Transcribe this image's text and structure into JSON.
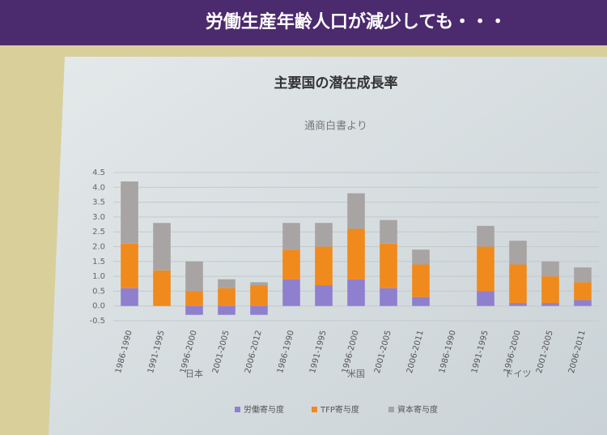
{
  "slide_title": "労働生産年齢人口が減少しても・・・",
  "chart_data": {
    "type": "stacked-bar",
    "title": "主要国の潜在成長率",
    "subtitle": "通商白書より",
    "categories": [
      "1986-1990",
      "1991-1995",
      "1996-2000",
      "2001-2005",
      "2006-2012",
      "1986-1990",
      "1991-1995",
      "1996-2000",
      "2001-2005",
      "2006-2011",
      "1986-1990",
      "1991-1995",
      "1996-2000",
      "2001-2005",
      "2006-2011"
    ],
    "groups": [
      "日本",
      "米国",
      "ドイツ"
    ],
    "series": [
      {
        "name": "労働寄与度",
        "color": "#8f7fcf",
        "values": [
          0.6,
          0.0,
          -0.3,
          -0.3,
          -0.3,
          0.9,
          0.7,
          0.9,
          0.6,
          0.3,
          null,
          0.5,
          0.1,
          0.1,
          0.2
        ]
      },
      {
        "name": "TFP寄与度",
        "color": "#f08a1c",
        "values": [
          1.5,
          1.2,
          0.5,
          0.6,
          0.7,
          1.0,
          1.3,
          1.7,
          1.5,
          1.1,
          null,
          1.5,
          1.3,
          0.9,
          0.6
        ]
      },
      {
        "name": "資本寄与度",
        "color": "#a8a4a4",
        "values": [
          2.1,
          1.6,
          1.0,
          0.3,
          0.1,
          0.9,
          0.8,
          1.2,
          0.8,
          0.5,
          null,
          0.7,
          0.8,
          0.5,
          0.5
        ]
      }
    ],
    "ylim": [
      -0.5,
      4.5
    ],
    "yticks": [
      -0.5,
      {
        "value": 0,
        "label": "0.0"
      },
      0.5,
      {
        "value": 1,
        "label": "1.0"
      },
      1.5,
      {
        "value": 2,
        "label": "2.0"
      },
      2.5,
      {
        "value": 3,
        "label": "3.0"
      },
      3.5,
      {
        "value": 4,
        "label": "4.0"
      },
      4.5
    ],
    "grid": true,
    "legend": "bottom"
  }
}
